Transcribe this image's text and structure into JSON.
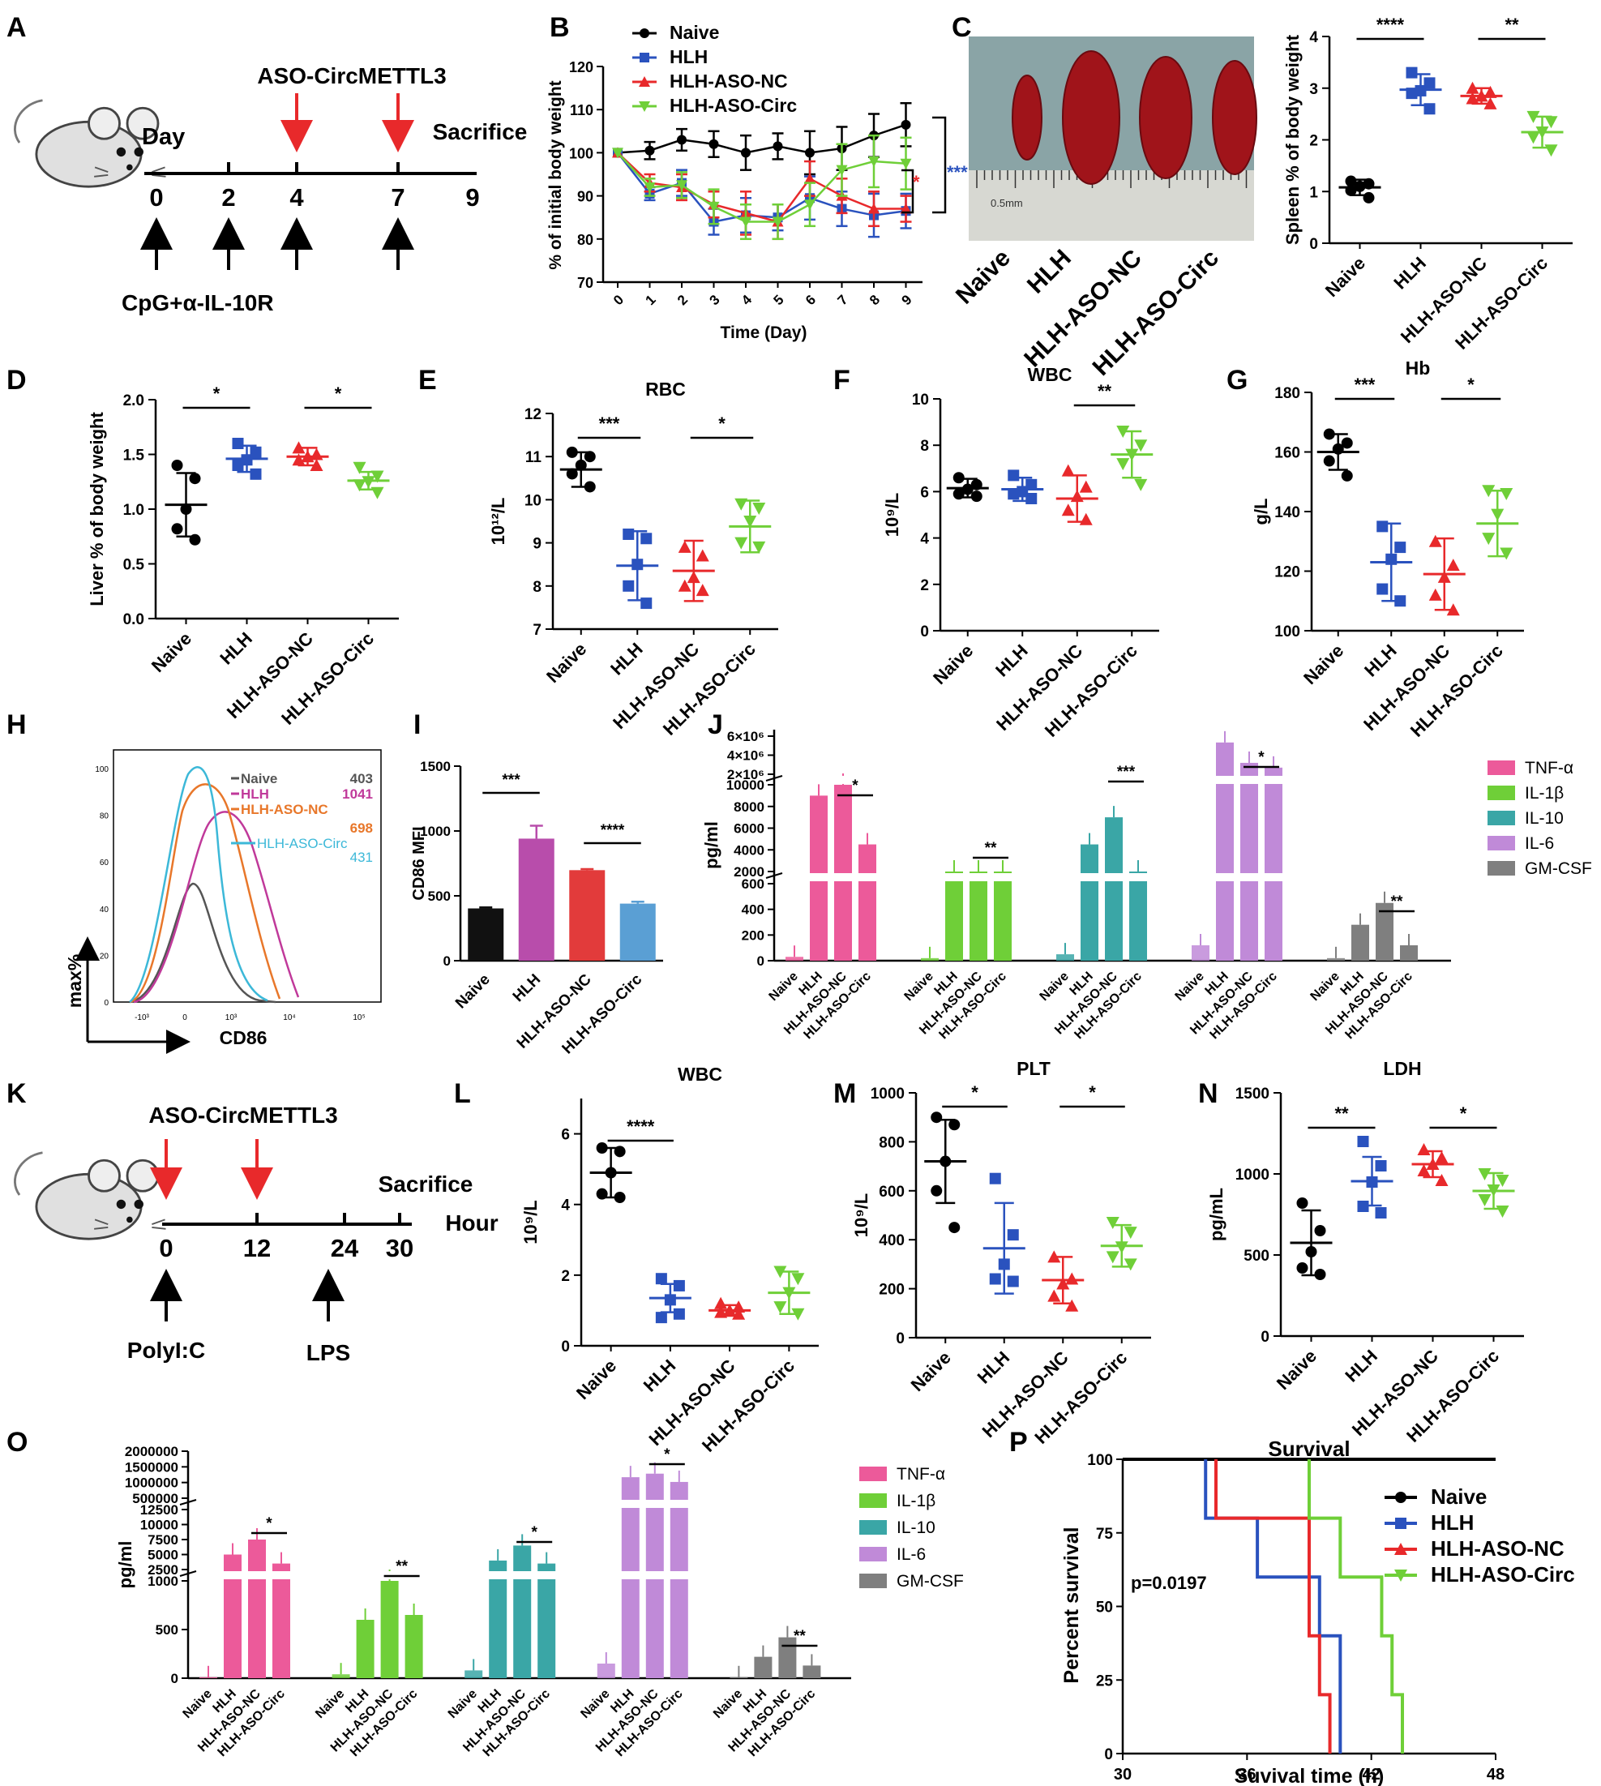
{
  "panel_letters": [
    "A",
    "B",
    "C",
    "D",
    "E",
    "F",
    "G",
    "H",
    "I",
    "J",
    "K",
    "L",
    "M",
    "N",
    "O",
    "P"
  ],
  "colors": {
    "naive": "#000000",
    "hlh": "#2a52be",
    "nc": "#e8292b",
    "circ": "#6fcf38",
    "sig_red": "#e8292b",
    "sig_blue": "#2a52be",
    "tnf": "#ec5a9a",
    "il1b": "#6fcf38",
    "il10": "#3aa6a6",
    "il6": "#c08ad8",
    "gmcsf": "#7f7f7f",
    "flow_naive": "#555555",
    "flow_hlh": "#c0399a",
    "flow_nc": "#e8772a",
    "flow_circ": "#3cb8d8",
    "bar_naive": "#111111",
    "bar_hlh": "#b84dab",
    "bar_nc": "#e23b3b",
    "bar_circ": "#5a9fd4"
  },
  "groups": [
    "Naive",
    "HLH",
    "HLH-ASO-NC",
    "HLH-ASO-Circ"
  ],
  "panelA": {
    "label_day": "Day",
    "label_aso": "ASO-CircMETTL3",
    "label_sac": "Sacrifice",
    "ticks": [
      "0",
      "2",
      "4",
      "7",
      "9"
    ],
    "label_treat": "CpG+α-IL-10R"
  },
  "panelK": {
    "label_aso": "ASO-CircMETTL3",
    "label_sac": "Sacrifice",
    "label_hour": "Hour",
    "ticks": [
      "0",
      "12",
      "24",
      "30"
    ],
    "label_polyic": "PolyI:C",
    "label_lps": "LPS"
  },
  "panelC_photo": {
    "ruler_text": "0.5mm",
    "labels": [
      "Naive",
      "HLH",
      "HLH-ASO-NC",
      "HLH-ASO-Circ"
    ]
  },
  "chart_data": [
    {
      "id": "B",
      "type": "line",
      "xlabel": "Time (Day)",
      "ylabel": "% of initial body weight",
      "ylim": [
        70,
        120
      ],
      "yticks": [
        70,
        80,
        90,
        100,
        110,
        120
      ],
      "x": [
        0,
        1,
        2,
        3,
        4,
        5,
        6,
        7,
        8,
        9
      ],
      "legend": [
        "Naive",
        "HLH",
        "HLH-ASO-NC",
        "HLH-ASO-Circ"
      ],
      "series": [
        {
          "name": "Naive",
          "values": [
            100,
            100.5,
            103,
            102,
            100,
            101.5,
            100,
            101,
            104,
            106.5
          ],
          "err": [
            0,
            2,
            2.5,
            3,
            4,
            3,
            5,
            5,
            5,
            5
          ]
        },
        {
          "name": "HLH",
          "values": [
            100,
            90.5,
            93,
            84,
            85.5,
            85,
            89.5,
            87,
            85.5,
            86.5
          ],
          "err": [
            0,
            1.5,
            3,
            3,
            4,
            3,
            5,
            4,
            5,
            4
          ]
        },
        {
          "name": "HLH-ASO-NC",
          "values": [
            100,
            93,
            92,
            88,
            86,
            84,
            94,
            90,
            87,
            87
          ],
          "err": [
            0,
            2,
            3,
            3,
            5,
            4,
            4,
            4,
            4,
            3
          ]
        },
        {
          "name": "HLH-ASO-Circ",
          "values": [
            100,
            92,
            92.5,
            87.5,
            84,
            84,
            88,
            96,
            98,
            97.5
          ],
          "err": [
            0,
            2,
            3,
            4,
            4,
            4,
            5,
            6,
            6,
            6
          ]
        }
      ],
      "annotations": [
        "*",
        "***"
      ]
    },
    {
      "id": "C",
      "type": "scatter",
      "ylabel": "Spleen % of body weight",
      "ylim": [
        0,
        4
      ],
      "yticks": [
        0,
        1,
        2,
        3,
        4
      ],
      "means": [
        1.08,
        2.97,
        2.85,
        2.15
      ],
      "sd": [
        0.15,
        0.3,
        0.15,
        0.3
      ],
      "points": [
        [
          1.2,
          1.15,
          1.1,
          1.02,
          0.88
        ],
        [
          3.3,
          3.1,
          2.95,
          2.9,
          2.6
        ],
        [
          3.0,
          2.92,
          2.85,
          2.8,
          2.7
        ],
        [
          2.45,
          2.35,
          2.15,
          2.05,
          1.8
        ]
      ],
      "sig": [
        {
          "from": 0,
          "to": 1,
          "label": "****"
        },
        {
          "from": 2,
          "to": 3,
          "label": "**"
        }
      ]
    },
    {
      "id": "D",
      "type": "scatter",
      "ylabel": "Liver % of body weight",
      "ylim": [
        0,
        2
      ],
      "yticks": [
        "0.0",
        "0.5",
        "1.0",
        "1.5",
        "2.0"
      ],
      "means": [
        1.04,
        1.46,
        1.48,
        1.26
      ],
      "sd": [
        0.29,
        0.12,
        0.08,
        0.08
      ],
      "points": [
        [
          1.4,
          1.28,
          1.0,
          0.82,
          0.72
        ],
        [
          1.6,
          1.52,
          1.45,
          1.4,
          1.32
        ],
        [
          1.56,
          1.5,
          1.48,
          1.45,
          1.4
        ],
        [
          1.38,
          1.3,
          1.25,
          1.22,
          1.15
        ]
      ],
      "sig": [
        {
          "from": 0,
          "to": 1,
          "label": "*"
        },
        {
          "from": 2,
          "to": 3,
          "label": "*"
        }
      ]
    },
    {
      "id": "E",
      "type": "scatter",
      "title": "RBC",
      "ylabel": "10¹²/L",
      "ylim": [
        7,
        12
      ],
      "yticks": [
        7,
        8,
        9,
        10,
        11,
        12
      ],
      "means": [
        10.7,
        8.47,
        8.35,
        9.38
      ],
      "sd": [
        0.4,
        0.8,
        0.7,
        0.6
      ],
      "points": [
        [
          11.1,
          11.0,
          10.8,
          10.6,
          10.3
        ],
        [
          9.2,
          9.1,
          8.5,
          8.0,
          7.6
        ],
        [
          8.9,
          8.7,
          8.2,
          8.0,
          7.9
        ],
        [
          9.9,
          9.8,
          9.5,
          9.0,
          8.9
        ]
      ],
      "sig": [
        {
          "from": 0,
          "to": 1,
          "label": "***"
        },
        {
          "from": 2,
          "to": 3,
          "label": "*"
        }
      ]
    },
    {
      "id": "F",
      "type": "scatter",
      "title": "WBC",
      "ylabel": "10⁹/L",
      "ylim": [
        0,
        10
      ],
      "yticks": [
        0,
        2,
        4,
        6,
        8,
        10
      ],
      "means": [
        6.15,
        6.1,
        5.7,
        7.6
      ],
      "sd": [
        0.4,
        0.5,
        1.0,
        1.0
      ],
      "points": [
        [
          6.6,
          6.3,
          6.1,
          5.9,
          5.8
        ],
        [
          6.7,
          6.3,
          6.0,
          5.9,
          5.7
        ],
        [
          6.9,
          6.2,
          5.8,
          5.2,
          4.8
        ],
        [
          8.6,
          8.0,
          7.6,
          7.2,
          6.3
        ]
      ],
      "sig": [
        {
          "from": 2,
          "to": 3,
          "label": "**"
        }
      ]
    },
    {
      "id": "G",
      "type": "scatter",
      "title": "Hb",
      "ylabel": "g/L",
      "ylim": [
        100,
        180
      ],
      "yticks": [
        100,
        120,
        140,
        160,
        180
      ],
      "means": [
        160,
        123,
        119,
        136
      ],
      "sd": [
        6,
        13,
        12,
        11
      ],
      "points": [
        [
          166,
          163,
          161,
          157,
          152
        ],
        [
          135,
          128,
          124,
          114,
          110
        ],
        [
          130,
          122,
          118,
          112,
          107
        ],
        [
          147,
          146,
          139,
          131,
          126
        ]
      ],
      "sig": [
        {
          "from": 0,
          "to": 1,
          "label": "***"
        },
        {
          "from": 2,
          "to": 3,
          "label": "*"
        }
      ]
    },
    {
      "id": "H",
      "type": "line",
      "xlabel": "CD86",
      "ylabel": "max%",
      "yticks": [
        "0",
        "20",
        "40",
        "60",
        "80",
        "100"
      ],
      "xticks": [
        "-10³",
        "0",
        "10³",
        "10⁴",
        "10⁵"
      ],
      "legend": [
        {
          "name": "Naive",
          "value": "403"
        },
        {
          "name": "HLH",
          "value": "1041"
        },
        {
          "name": "HLH-ASO-NC",
          "value": "698"
        },
        {
          "name": "HLH-ASO-Circ",
          "value": "431"
        }
      ]
    },
    {
      "id": "I",
      "type": "bar",
      "ylabel": "CD86 MFI",
      "ylim": [
        0,
        1500
      ],
      "yticks": [
        0,
        500,
        1000,
        1500
      ],
      "values": [
        403,
        941,
        698,
        440
      ],
      "err": [
        8,
        100,
        8,
        15
      ],
      "sig": [
        {
          "from": 0,
          "to": 1,
          "label": "***"
        },
        {
          "from": 2,
          "to": 3,
          "label": "****"
        }
      ]
    },
    {
      "id": "J",
      "type": "bar",
      "ylabel": "pg/ml",
      "yticks_low": [
        0,
        200,
        400,
        600
      ],
      "yticks_mid": [
        2000,
        4000,
        6000,
        8000,
        10000
      ],
      "yticks_high": [
        "2×10⁶",
        "4×10⁶",
        "6×10⁶"
      ],
      "cytokines": [
        "TNF-α",
        "IL-1β",
        "IL-10",
        "IL-6",
        "GM-CSF"
      ],
      "values": [
        [
          30,
          9000,
          10000,
          4500
        ],
        [
          20,
          1200,
          1500,
          800
        ],
        [
          50,
          4500,
          7000,
          2000
        ],
        [
          120,
          5000000,
          1800000,
          1050000
        ],
        [
          20,
          280,
          450,
          120
        ]
      ],
      "sig": [
        "*",
        "**",
        "***",
        "*",
        "**"
      ]
    },
    {
      "id": "L",
      "type": "scatter",
      "title": "WBC",
      "ylabel": "10⁹/L",
      "ylim": [
        0,
        7
      ],
      "yticks": [
        0,
        2,
        4,
        6
      ],
      "means": [
        4.9,
        1.35,
        1.0,
        1.5
      ],
      "sd": [
        0.7,
        0.4,
        0.15,
        0.6
      ],
      "points": [
        [
          5.6,
          5.5,
          4.9,
          4.3,
          4.2
        ],
        [
          1.9,
          1.7,
          1.3,
          0.8,
          0.9
        ],
        [
          1.2,
          1.1,
          1.0,
          0.95,
          0.9
        ],
        [
          2.1,
          1.9,
          1.5,
          1.1,
          0.9
        ]
      ],
      "sig": [
        {
          "from": 0,
          "to": 1,
          "label": "****"
        }
      ]
    },
    {
      "id": "M",
      "type": "scatter",
      "title": "PLT",
      "ylabel": "10⁹/L",
      "ylim": [
        0,
        1000
      ],
      "yticks": [
        0,
        200,
        400,
        600,
        800,
        1000
      ],
      "means": [
        720,
        365,
        235,
        375
      ],
      "sd": [
        170,
        185,
        95,
        85
      ],
      "points": [
        [
          900,
          870,
          720,
          600,
          450
        ],
        [
          650,
          420,
          300,
          240,
          230
        ],
        [
          330,
          240,
          220,
          170,
          130
        ],
        [
          470,
          430,
          370,
          330,
          300
        ]
      ],
      "sig": [
        {
          "from": 0,
          "to": 1,
          "label": "*"
        },
        {
          "from": 2,
          "to": 3,
          "label": "*"
        }
      ]
    },
    {
      "id": "N",
      "type": "scatter",
      "title": "LDH",
      "ylabel": "pg/mL",
      "ylim": [
        0,
        1500
      ],
      "yticks": [
        0,
        500,
        1000,
        1500
      ],
      "means": [
        575,
        955,
        1060,
        895
      ],
      "sd": [
        200,
        150,
        80,
        110
      ],
      "points": [
        [
          820,
          650,
          520,
          420,
          380
        ],
        [
          1200,
          1050,
          950,
          800,
          760
        ],
        [
          1150,
          1100,
          1060,
          1020,
          960
        ],
        [
          1000,
          960,
          900,
          840,
          770
        ]
      ],
      "sig": [
        {
          "from": 0,
          "to": 1,
          "label": "**"
        },
        {
          "from": 2,
          "to": 3,
          "label": "*"
        }
      ]
    },
    {
      "id": "O",
      "type": "bar",
      "ylabel": "pg/ml",
      "yticks_low": [
        0,
        500,
        1000
      ],
      "yticks_mid": [
        2500,
        5000,
        7500,
        10000,
        12500
      ],
      "yticks_high": [
        500000,
        1000000,
        1500000,
        2000000
      ],
      "cytokines": [
        "TNF-α",
        "IL-1β",
        "IL-10",
        "IL-6",
        "GM-CSF"
      ],
      "values": [
        [
          10,
          5000,
          7500,
          3500
        ],
        [
          40,
          600,
          1000,
          650
        ],
        [
          80,
          4000,
          6500,
          3500
        ],
        [
          150,
          900000,
          1050000,
          700000
        ],
        [
          10,
          220,
          420,
          130
        ]
      ],
      "sig": [
        "*",
        "**",
        "*",
        "*",
        "**"
      ]
    },
    {
      "id": "P",
      "type": "line",
      "title": "Survival",
      "xlabel": "Suvival time (h)",
      "ylabel": "Percent survival",
      "xlim": [
        30,
        48
      ],
      "ylim": [
        0,
        100
      ],
      "xticks": [
        30,
        36,
        42,
        48
      ],
      "yticks": [
        0,
        25,
        50,
        75,
        100
      ],
      "annotation": "p=0.0197",
      "legend": [
        "Naive",
        "HLH",
        "HLH-ASO-NC",
        "HLH-ASO-Circ"
      ],
      "series": [
        {
          "name": "Naive",
          "x": [
            30,
            48
          ],
          "y": [
            100,
            100
          ]
        },
        {
          "name": "HLH",
          "x": [
            34,
            34,
            36.5,
            36.5,
            39.5,
            39.5,
            40.5,
            40.5
          ],
          "y": [
            100,
            80,
            80,
            60,
            60,
            40,
            40,
            0
          ]
        },
        {
          "name": "HLH-ASO-NC",
          "x": [
            34.5,
            34.5,
            39,
            39,
            39.5,
            39.5,
            40,
            40
          ],
          "y": [
            100,
            80,
            80,
            40,
            40,
            20,
            20,
            0
          ]
        },
        {
          "name": "HLH-ASO-Circ",
          "x": [
            39,
            39,
            40.5,
            40.5,
            42.5,
            42.5,
            43,
            43,
            43.5,
            43.5
          ],
          "y": [
            100,
            80,
            80,
            60,
            60,
            40,
            40,
            20,
            20,
            0
          ]
        }
      ]
    }
  ]
}
